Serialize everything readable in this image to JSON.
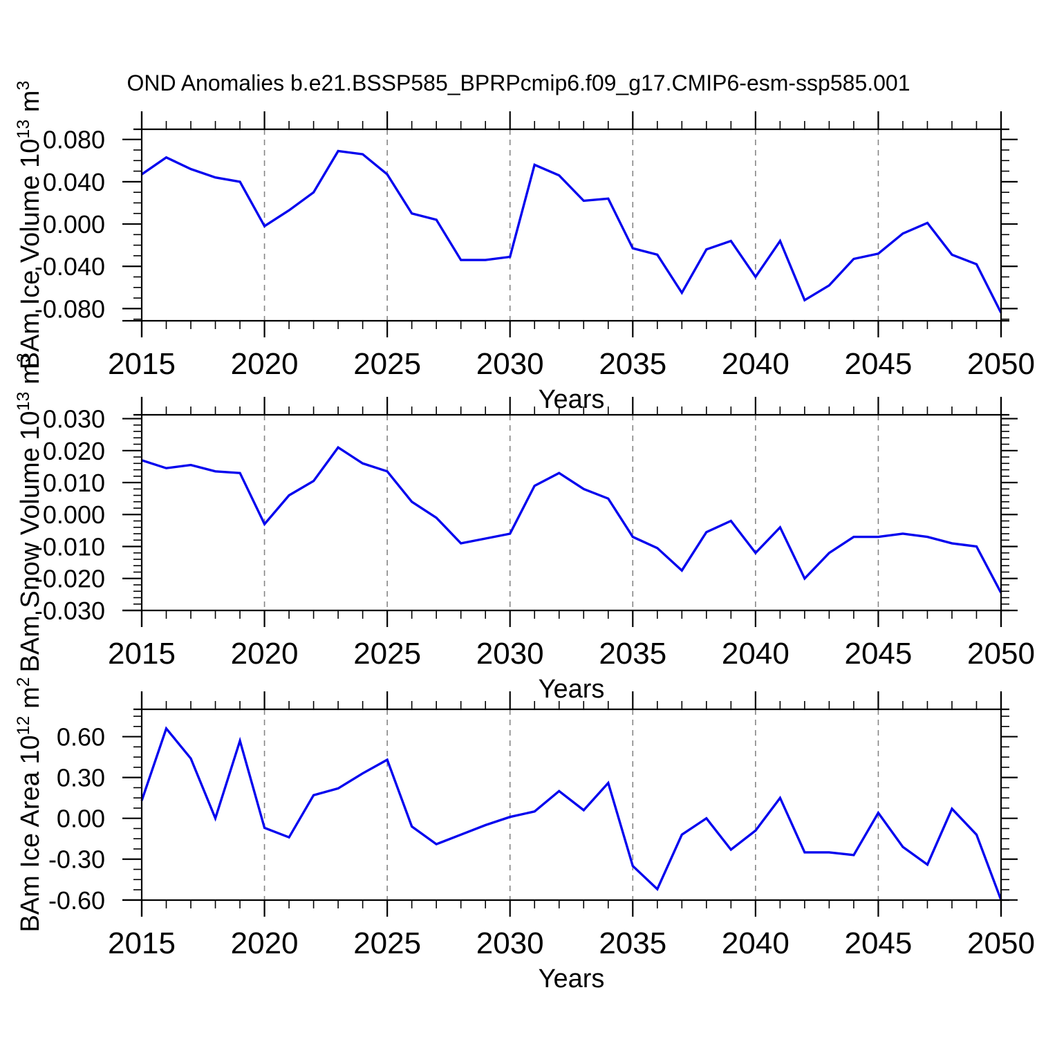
{
  "title": "OND Anomalies b.e21.BSSP585_BPRPcmip6.f09_g17.CMIP6-esm-ssp585.001",
  "xlabel": "Years",
  "line_color": "#0404EE",
  "axis_color": "#000000",
  "grid_color": "#858585",
  "text_color": "#000000",
  "years": [
    2015,
    2016,
    2017,
    2018,
    2019,
    2020,
    2021,
    2022,
    2023,
    2024,
    2025,
    2026,
    2027,
    2028,
    2029,
    2030,
    2031,
    2032,
    2033,
    2034,
    2035,
    2036,
    2037,
    2038,
    2039,
    2040,
    2041,
    2042,
    2043,
    2044,
    2045,
    2046,
    2047,
    2048,
    2049,
    2050
  ],
  "xtick_labels": [
    "2015",
    "2020",
    "2025",
    "2030",
    "2035",
    "2040",
    "2045",
    "2050"
  ],
  "grid_years": [
    2020,
    2025,
    2030,
    2035,
    2040,
    2045
  ],
  "chart_data": [
    {
      "type": "line",
      "name": "bam-ice-volume",
      "series_label": "BAm Ice Volume 10^13 m^3",
      "ylabel": {
        "base": "BAm Ice Volume 10",
        "exp": "13",
        "unit": "m",
        "unit_exp": "3"
      },
      "xlabel": "Years",
      "ylim": [
        -0.0915,
        0.0896
      ],
      "yticks": [
        0.08,
        0.04,
        0.0,
        -0.04,
        -0.08
      ],
      "ytick_labels": [
        "0.080",
        "0.040",
        "0.000",
        "-0.040",
        "-0.080"
      ],
      "y_minor_step": 0.01,
      "values": [
        0.047,
        0.063,
        0.052,
        0.044,
        0.04,
        -0.002,
        0.013,
        0.03,
        0.069,
        0.066,
        0.047,
        0.01,
        0.004,
        -0.034,
        -0.034,
        -0.031,
        0.056,
        0.046,
        0.022,
        0.024,
        -0.023,
        -0.029,
        -0.065,
        -0.024,
        -0.016,
        -0.05,
        -0.016,
        -0.072,
        -0.058,
        -0.033,
        -0.028,
        -0.009,
        0.001,
        -0.029,
        -0.038,
        -0.084
      ]
    },
    {
      "type": "line",
      "name": "bam-snow-volume",
      "series_label": "BAm Snow Volume 10^13 m^3",
      "ylabel": {
        "base": "BAm Snow Volume 10",
        "exp": "13",
        "unit": "m",
        "unit_exp": "3"
      },
      "xlabel": "Years",
      "ylim": [
        -0.03,
        0.0312
      ],
      "yticks": [
        0.03,
        0.02,
        0.01,
        0.0,
        -0.01,
        -0.02,
        -0.03
      ],
      "ytick_labels": [
        "0.030",
        "0.020",
        "0.010",
        "0.000",
        "-0.010",
        "-0.020",
        "-0.030"
      ],
      "y_minor_step": 0.002,
      "values": [
        0.017,
        0.0145,
        0.0155,
        0.0135,
        0.013,
        -0.003,
        0.006,
        0.0105,
        0.021,
        0.016,
        0.0135,
        0.004,
        -0.001,
        -0.009,
        -0.0075,
        -0.006,
        0.009,
        0.013,
        0.008,
        0.005,
        -0.007,
        -0.0105,
        -0.0175,
        -0.0055,
        -0.002,
        -0.012,
        -0.004,
        -0.02,
        -0.012,
        -0.007,
        -0.007,
        -0.006,
        -0.007,
        -0.009,
        -0.01,
        -0.0245
      ]
    },
    {
      "type": "line",
      "name": "bam-ice-area",
      "series_label": "BAm Ice Area 10^12 m^2",
      "ylabel": {
        "base": "BAm Ice Area 10",
        "exp": "12",
        "unit": "m",
        "unit_exp": "2"
      },
      "xlabel": "Years",
      "ylim": [
        -0.601,
        0.801
      ],
      "yticks": [
        0.6,
        0.3,
        0.0,
        -0.3,
        -0.6
      ],
      "ytick_labels": [
        "0.60",
        "0.30",
        "0.00",
        "-0.30",
        "-0.60"
      ],
      "y_minor_step": 0.075,
      "values": [
        0.13,
        0.66,
        0.44,
        0.0,
        0.57,
        -0.07,
        -0.14,
        0.17,
        0.22,
        0.33,
        0.43,
        -0.06,
        -0.19,
        -0.12,
        -0.05,
        0.01,
        0.05,
        0.2,
        0.06,
        0.26,
        -0.35,
        -0.52,
        -0.12,
        0.0,
        -0.23,
        -0.09,
        0.15,
        -0.25,
        -0.25,
        -0.27,
        0.04,
        -0.21,
        -0.34,
        0.07,
        -0.12,
        -0.6
      ]
    }
  ]
}
